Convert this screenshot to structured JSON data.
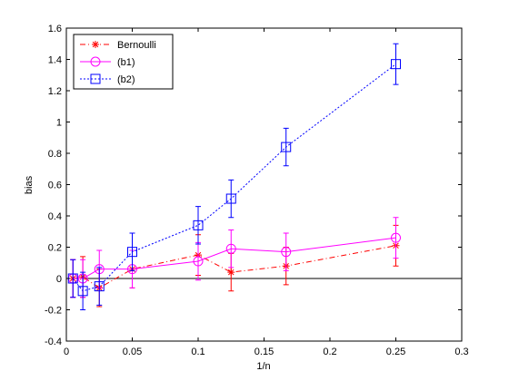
{
  "chart_data": {
    "type": "line",
    "xlabel": "1/n",
    "ylabel": "bias",
    "xlim": [
      0,
      0.3
    ],
    "ylim": [
      -0.4,
      1.6
    ],
    "xticks": [
      0,
      0.05,
      0.1,
      0.15,
      0.2,
      0.25,
      0.3
    ],
    "xtick_labels": [
      "0",
      "0.05",
      "0.1",
      "0.15",
      "0.2",
      "0.25",
      "0.3"
    ],
    "yticks": [
      -0.4,
      -0.2,
      0,
      0.2,
      0.4,
      0.6,
      0.8,
      1,
      1.2,
      1.4,
      1.6
    ],
    "ytick_labels": [
      "-0.4",
      "-0.2",
      "0",
      "0.2",
      "0.4",
      "0.6",
      "0.8",
      "1",
      "1.2",
      "1.4",
      "1.6"
    ],
    "reference_line_y": 0,
    "grid": false,
    "legend_position": "top-left",
    "series": [
      {
        "name": "Bernoulli",
        "color": "#ff0000",
        "marker": "asterisk",
        "line_style": "dash-dot",
        "x": [
          0.005,
          0.0125,
          0.025,
          0.05,
          0.1,
          0.125,
          0.1667,
          0.25
        ],
        "y": [
          0.0,
          0.01,
          -0.06,
          0.06,
          0.15,
          0.04,
          0.08,
          0.21
        ],
        "err": [
          0.12,
          0.13,
          0.12,
          0.12,
          0.13,
          0.12,
          0.12,
          0.13
        ]
      },
      {
        "name": "(b1)",
        "color": "#ff00ff",
        "marker": "circle",
        "line_style": "solid",
        "x": [
          0.005,
          0.0125,
          0.025,
          0.05,
          0.1,
          0.125,
          0.1667,
          0.25
        ],
        "y": [
          0.0,
          0.0,
          0.06,
          0.06,
          0.11,
          0.19,
          0.17,
          0.26
        ],
        "err": [
          0.12,
          0.12,
          0.12,
          0.12,
          0.12,
          0.12,
          0.12,
          0.13
        ]
      },
      {
        "name": "(b2)",
        "color": "#0000ff",
        "marker": "square",
        "line_style": "dotted",
        "x": [
          0.005,
          0.0125,
          0.025,
          0.05,
          0.1,
          0.125,
          0.1667,
          0.25
        ],
        "y": [
          0.0,
          -0.08,
          -0.05,
          0.17,
          0.34,
          0.51,
          0.84,
          1.37
        ],
        "err": [
          0.12,
          0.12,
          0.12,
          0.12,
          0.12,
          0.12,
          0.12,
          0.13
        ]
      }
    ]
  }
}
